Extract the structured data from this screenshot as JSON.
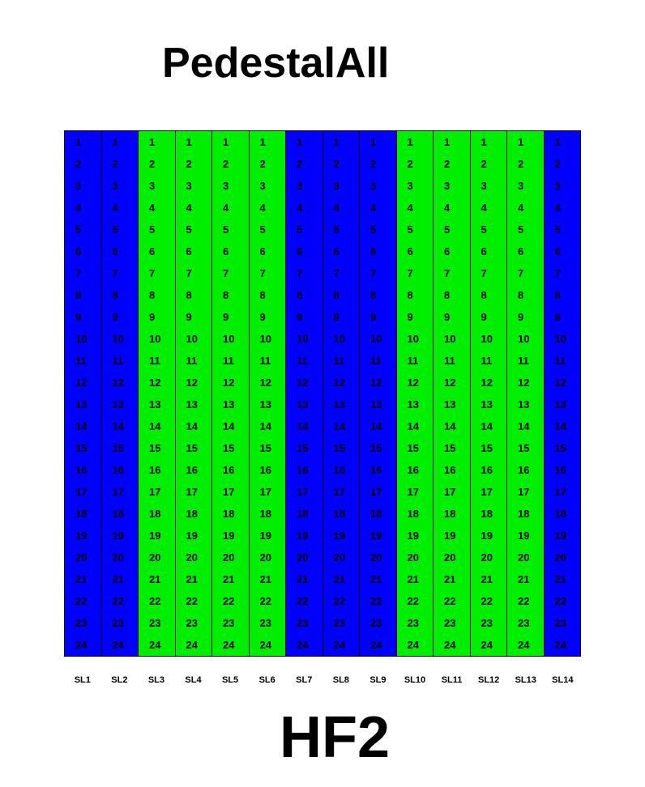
{
  "title": "PedestalAll",
  "subtitle": "HF2",
  "colors": {
    "blue": "#0000ff",
    "green": "#00ee00"
  },
  "rows": [
    "1",
    "2",
    "3",
    "4",
    "5",
    "6",
    "7",
    "8",
    "9",
    "10",
    "11",
    "12",
    "13",
    "14",
    "15",
    "16",
    "17",
    "18",
    "19",
    "20",
    "21",
    "22",
    "23",
    "24"
  ],
  "slots": [
    {
      "label": "SL1",
      "status": "blue"
    },
    {
      "label": "SL2",
      "status": "blue"
    },
    {
      "label": "SL3",
      "status": "green"
    },
    {
      "label": "SL4",
      "status": "green"
    },
    {
      "label": "SL5",
      "status": "green"
    },
    {
      "label": "SL6",
      "status": "green"
    },
    {
      "label": "SL7",
      "status": "blue"
    },
    {
      "label": "SL8",
      "status": "blue"
    },
    {
      "label": "SL9",
      "status": "blue"
    },
    {
      "label": "SL10",
      "status": "green"
    },
    {
      "label": "SL11",
      "status": "green"
    },
    {
      "label": "SL12",
      "status": "green"
    },
    {
      "label": "SL13",
      "status": "green"
    },
    {
      "label": "SL14",
      "status": "blue"
    }
  ]
}
